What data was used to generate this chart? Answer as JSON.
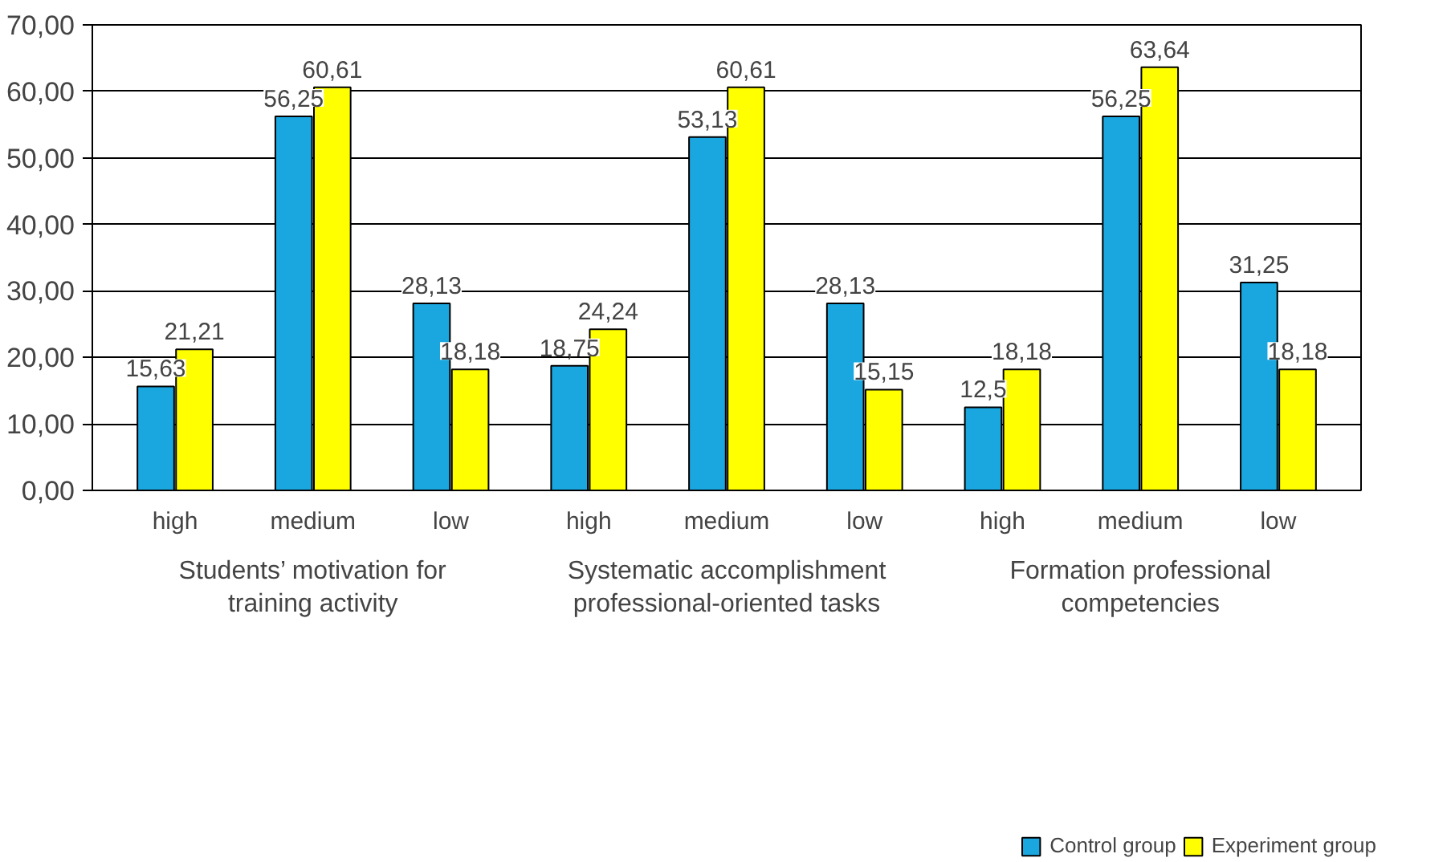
{
  "chart_data": {
    "type": "bar",
    "categories": [
      "high",
      "medium",
      "low",
      "high",
      "medium",
      "low",
      "high",
      "medium",
      "low"
    ],
    "series": [
      {
        "name": "Control group",
        "color": "#1aa7e0",
        "values": [
          15.63,
          56.25,
          28.13,
          18.75,
          53.13,
          28.13,
          12.5,
          56.25,
          31.25
        ],
        "value_labels": [
          "15,63",
          "56,25",
          "28,13",
          "18,75",
          "53,13",
          "28,13",
          "12,5",
          "56,25",
          "31,25"
        ]
      },
      {
        "name": "Experiment group",
        "color": "#ffff00",
        "values": [
          21.21,
          60.61,
          18.18,
          24.24,
          60.61,
          15.15,
          18.18,
          63.64,
          18.18
        ],
        "value_labels": [
          "21,21",
          "60,61",
          "18,18",
          "24,24",
          "60,61",
          "15,15",
          "18,18",
          "63,64",
          "18,18"
        ]
      }
    ],
    "ylim": [
      0,
      70
    ],
    "yticks": [
      {
        "value": 0,
        "label": "0,00"
      },
      {
        "value": 10,
        "label": "10,00"
      },
      {
        "value": 20,
        "label": "20,00"
      },
      {
        "value": 30,
        "label": "30,00"
      },
      {
        "value": 40,
        "label": "40,00"
      },
      {
        "value": 50,
        "label": "50,00"
      },
      {
        "value": 60,
        "label": "60,00"
      },
      {
        "value": 70,
        "label": "70,00"
      }
    ],
    "annotations": [
      "Students’ motivation for\ntraining activity",
      "Systematic accomplishment\nprofessional-oriented tasks",
      "Formation professional\ncompetencies"
    ],
    "grid": "y",
    "legend": "bottom"
  }
}
